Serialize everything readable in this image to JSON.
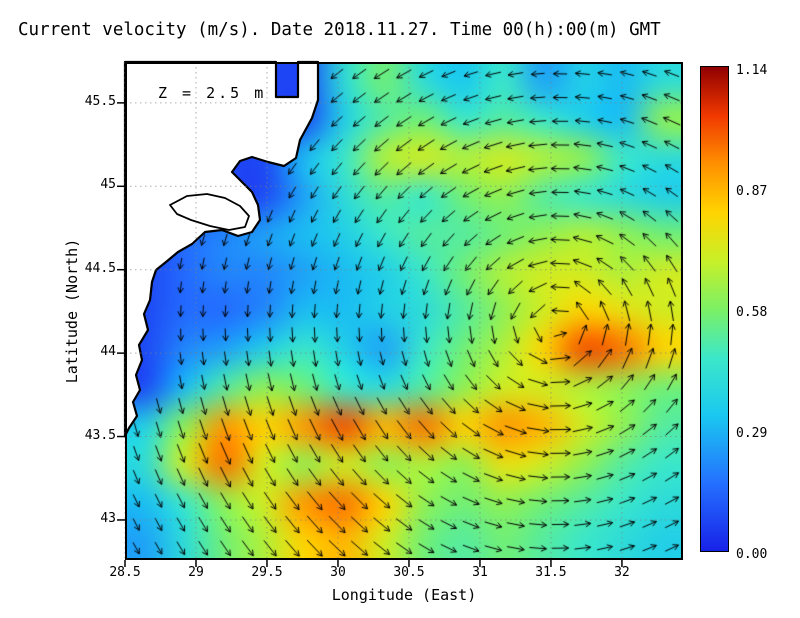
{
  "chart_data": {
    "type": "heatmap",
    "title": "Current velocity (m/s). Date 2018.11.27. Time 00(h):00(m) GMT",
    "annotation": "Z = 2.5 m",
    "units": "m/s",
    "xlabel": "Longitude (East)",
    "ylabel": "Latitude (North)",
    "xlim": [
      28.5,
      32.43
    ],
    "ylim": [
      42.76,
      45.745
    ],
    "xticks": [
      "28.5",
      "29",
      "29.5",
      "30",
      "30.5",
      "31",
      "31.5",
      "32"
    ],
    "yticks": [
      "45.5",
      "45",
      "44.5",
      "44",
      "43.5",
      "43"
    ],
    "colorbar": {
      "min": 0.0,
      "max": 1.14,
      "tick_labels": [
        "1.14",
        "0.87",
        "0.58",
        "0.29",
        "0.00"
      ],
      "stops": [
        [
          0.0,
          "#1822e8"
        ],
        [
          0.14,
          "#2470ff"
        ],
        [
          0.28,
          "#1ac8f0"
        ],
        [
          0.4,
          "#3ce8c8"
        ],
        [
          0.5,
          "#7cf064"
        ],
        [
          0.6,
          "#c8f028"
        ],
        [
          0.7,
          "#ffd400"
        ],
        [
          0.8,
          "#ff9000"
        ],
        [
          0.9,
          "#f03800"
        ],
        [
          1.0,
          "#900000"
        ]
      ]
    },
    "x": [
      28.5,
      28.8,
      29.1,
      29.4,
      29.7,
      30.0,
      30.3,
      30.6,
      30.9,
      31.2,
      31.5,
      31.8,
      32.1,
      32.4
    ],
    "y": [
      45.7,
      45.45,
      45.2,
      44.95,
      44.7,
      44.45,
      44.2,
      43.95,
      43.7,
      43.45,
      43.2,
      42.95,
      42.8
    ],
    "magnitude_ms": [
      [
        null,
        null,
        null,
        null,
        null,
        0.4,
        0.55,
        0.4,
        0.32,
        0.45,
        0.25,
        0.35,
        0.3,
        0.4
      ],
      [
        null,
        null,
        null,
        null,
        null,
        0.35,
        0.5,
        0.55,
        0.45,
        0.5,
        0.45,
        0.35,
        0.3,
        0.6
      ],
      [
        null,
        null,
        null,
        null,
        0.3,
        0.45,
        0.65,
        0.7,
        0.65,
        0.7,
        0.65,
        0.6,
        0.45,
        0.4
      ],
      [
        null,
        null,
        null,
        null,
        0.25,
        0.4,
        0.5,
        0.45,
        0.55,
        0.6,
        0.5,
        0.45,
        0.4,
        0.35
      ],
      [
        null,
        0.15,
        0.2,
        0.25,
        0.3,
        0.35,
        0.45,
        0.5,
        0.5,
        0.55,
        0.6,
        0.65,
        0.6,
        0.55
      ],
      [
        null,
        0.15,
        0.2,
        0.2,
        0.25,
        0.3,
        0.35,
        0.45,
        0.55,
        0.65,
        0.7,
        0.7,
        0.65,
        0.7
      ],
      [
        null,
        0.15,
        0.15,
        0.2,
        0.3,
        0.3,
        0.35,
        0.4,
        0.5,
        0.6,
        0.7,
        0.8,
        0.75,
        0.7
      ],
      [
        null,
        0.2,
        0.25,
        0.35,
        0.45,
        0.35,
        0.25,
        0.45,
        0.55,
        0.65,
        0.8,
        1.0,
        0.95,
        0.8
      ],
      [
        null,
        0.3,
        0.5,
        0.6,
        0.55,
        0.45,
        0.4,
        0.5,
        0.6,
        0.7,
        0.7,
        0.65,
        0.6,
        0.55
      ],
      [
        0.35,
        0.6,
        0.9,
        0.8,
        0.9,
        1.0,
        0.85,
        0.95,
        0.8,
        0.9,
        0.85,
        0.7,
        0.6,
        0.5
      ],
      [
        0.4,
        0.7,
        0.95,
        0.7,
        0.6,
        0.7,
        0.6,
        0.65,
        0.6,
        0.75,
        0.7,
        0.6,
        0.5,
        0.45
      ],
      [
        0.3,
        0.45,
        0.6,
        0.7,
        0.9,
        0.95,
        0.8,
        0.6,
        0.55,
        0.6,
        0.55,
        0.5,
        0.45,
        0.4
      ],
      [
        0.25,
        0.4,
        0.55,
        0.65,
        0.8,
        0.85,
        0.7,
        0.55,
        0.5,
        0.55,
        0.5,
        0.45,
        0.4,
        0.35
      ]
    ],
    "direction_deg": [
      [
        null,
        null,
        null,
        null,
        null,
        218,
        212,
        206,
        199,
        191,
        183,
        175,
        167,
        159
      ],
      [
        null,
        null,
        null,
        null,
        null,
        222,
        217,
        210,
        202,
        193,
        183,
        174,
        164,
        156
      ],
      [
        null,
        null,
        null,
        null,
        233,
        228,
        222,
        215,
        206,
        196,
        184,
        172,
        161,
        151
      ],
      [
        null,
        null,
        null,
        null,
        240,
        235,
        230,
        222,
        212,
        200,
        185,
        170,
        156,
        144
      ],
      [
        null,
        254,
        253,
        250,
        248,
        244,
        239,
        232,
        222,
        207,
        187,
        166,
        147,
        134
      ],
      [
        null,
        261,
        260,
        258,
        256,
        254,
        251,
        245,
        237,
        221,
        192,
        156,
        132,
        120
      ],
      [
        null,
        267,
        267,
        267,
        266,
        265,
        264,
        263,
        260,
        252,
        218,
        123,
        105,
        99
      ],
      [
        null,
        274,
        275,
        275,
        276,
        277,
        279,
        281,
        286,
        296,
        333,
        46,
        69,
        76
      ],
      [
        null,
        281,
        282,
        283,
        285,
        288,
        292,
        298,
        307,
        322,
        349,
        21,
        44,
        57
      ],
      [
        285,
        287,
        289,
        291,
        294,
        298,
        303,
        310,
        320,
        335,
        353,
        13,
        31,
        43
      ],
      [
        291,
        293,
        295,
        298,
        302,
        306,
        312,
        320,
        329,
        341,
        355,
        10,
        23,
        34
      ],
      [
        296,
        298,
        301,
        304,
        308,
        313,
        319,
        326,
        335,
        345,
        356,
        8,
        19,
        28
      ],
      [
        299,
        301,
        304,
        308,
        312,
        317,
        322,
        329,
        338,
        347,
        357,
        7,
        17,
        25
      ]
    ]
  },
  "map": {
    "land_color": "#ffffff",
    "coast_color": "#000000",
    "land_polygon": [
      [
        0,
        0
      ],
      [
        151,
        0
      ],
      [
        151,
        35
      ],
      [
        173,
        35
      ],
      [
        173,
        0
      ],
      [
        193,
        0
      ],
      [
        193,
        38
      ],
      [
        187,
        56
      ],
      [
        175,
        78
      ],
      [
        171,
        96
      ],
      [
        159,
        104
      ],
      [
        143,
        100
      ],
      [
        127,
        95
      ],
      [
        115,
        99
      ],
      [
        107,
        110
      ],
      [
        117,
        120
      ],
      [
        127,
        130
      ],
      [
        133,
        143
      ],
      [
        135,
        158
      ],
      [
        127,
        170
      ],
      [
        113,
        174
      ],
      [
        97,
        168
      ],
      [
        80,
        170
      ],
      [
        67,
        182
      ],
      [
        53,
        190
      ],
      [
        41,
        200
      ],
      [
        31,
        208
      ],
      [
        27,
        220
      ],
      [
        25,
        238
      ],
      [
        19,
        252
      ],
      [
        23,
        268
      ],
      [
        14,
        283
      ],
      [
        17,
        298
      ],
      [
        11,
        313
      ],
      [
        15,
        328
      ],
      [
        8,
        340
      ],
      [
        12,
        354
      ],
      [
        4,
        366
      ],
      [
        0,
        374
      ]
    ],
    "lake_polygon": [
      [
        45,
        143
      ],
      [
        62,
        134
      ],
      [
        82,
        132
      ],
      [
        100,
        136
      ],
      [
        115,
        144
      ],
      [
        124,
        154
      ],
      [
        120,
        165
      ],
      [
        104,
        168
      ],
      [
        85,
        164
      ],
      [
        66,
        158
      ],
      [
        52,
        152
      ]
    ]
  }
}
